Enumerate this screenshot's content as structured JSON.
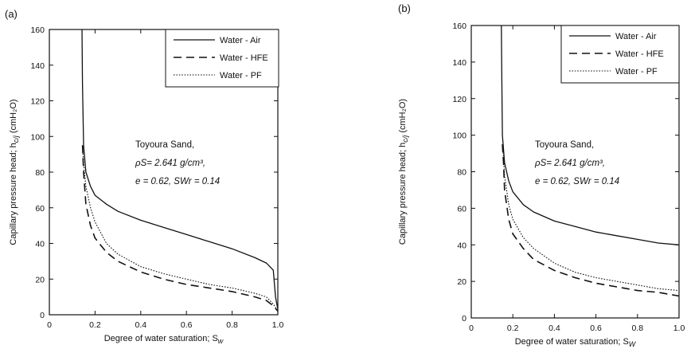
{
  "chart_data": [
    {
      "type": "line",
      "panel_label": "(a)",
      "xlabel": "Degree of water saturation; S",
      "xlabel_sub": "w",
      "ylabel": "Capillary pressure head; h",
      "ylabel_sub": "c/j",
      "ylabel_unit": " (cmH₂O)",
      "xlim": [
        0,
        1.0
      ],
      "ylim": [
        0,
        160
      ],
      "xticks": [
        0,
        0.2,
        0.4,
        0.6,
        0.8,
        1.0
      ],
      "xtick_labels": [
        "0",
        "0.2",
        "0.4",
        "0.6",
        "0.8",
        "1.0"
      ],
      "yticks": [
        0,
        20,
        40,
        60,
        80,
        100,
        120,
        140,
        160
      ],
      "ytick_labels": [
        "0",
        "20",
        "40",
        "60",
        "80",
        "100",
        "120",
        "140",
        "160"
      ],
      "annotation": {
        "line1": "Toyoura Sand,",
        "line2": "ρS= 2.641 g/cm³,",
        "line3": "e = 0.62, SWr = 0.14"
      },
      "legend_position": "top-right",
      "series": [
        {
          "name": "Water - Air",
          "dash": "solid",
          "x": [
            0.143,
            0.145,
            0.15,
            0.16,
            0.18,
            0.2,
            0.25,
            0.3,
            0.4,
            0.5,
            0.6,
            0.7,
            0.8,
            0.9,
            0.95,
            0.98,
            0.99,
            1.0
          ],
          "y": [
            160,
            130,
            95,
            80,
            72,
            67,
            62,
            58,
            53,
            49,
            45,
            41,
            37,
            32,
            29,
            25,
            10,
            3
          ]
        },
        {
          "name": "Water - HFE",
          "dash": "dashed",
          "x": [
            0.145,
            0.15,
            0.16,
            0.18,
            0.2,
            0.25,
            0.3,
            0.4,
            0.5,
            0.6,
            0.7,
            0.8,
            0.9,
            0.95,
            0.98,
            1.0
          ],
          "y": [
            95,
            80,
            62,
            50,
            43,
            35,
            30,
            24,
            20,
            17,
            15,
            13,
            10,
            8,
            5,
            2
          ]
        },
        {
          "name": "Water - PF",
          "dash": "dotted",
          "x": [
            0.145,
            0.15,
            0.16,
            0.18,
            0.2,
            0.25,
            0.3,
            0.4,
            0.5,
            0.6,
            0.7,
            0.8,
            0.9,
            0.95,
            0.98,
            1.0
          ],
          "y": [
            95,
            85,
            72,
            60,
            52,
            40,
            34,
            27,
            23,
            20,
            17,
            15,
            12,
            10,
            6,
            2
          ]
        }
      ]
    },
    {
      "type": "line",
      "panel_label": "(b)",
      "xlabel": "Degree of water saturation; S",
      "xlabel_sub": "W",
      "ylabel": "Capillary pressure head; h",
      "ylabel_sub": "c/j",
      "ylabel_unit": " (cmH₂O)",
      "xlim": [
        0,
        1.0
      ],
      "ylim": [
        0,
        160
      ],
      "xticks": [
        0,
        0.2,
        0.4,
        0.6,
        0.8,
        1.0
      ],
      "xtick_labels": [
        "0",
        "0.2",
        "0.4",
        "0.6",
        "0.8",
        "1.0"
      ],
      "yticks": [
        0,
        20,
        40,
        60,
        80,
        100,
        120,
        140,
        160
      ],
      "ytick_labels": [
        "0",
        "20",
        "40",
        "60",
        "80",
        "100",
        "120",
        "140",
        "160"
      ],
      "annotation": {
        "line1": "Toyoura Sand,",
        "line2": "ρS= 2.641 g/cm³,",
        "line3": "e = 0.62, SWr = 0.14"
      },
      "legend_position": "top-right",
      "series": [
        {
          "name": "Water - Air",
          "dash": "solid",
          "x": [
            0.145,
            0.147,
            0.15,
            0.16,
            0.18,
            0.2,
            0.25,
            0.3,
            0.4,
            0.5,
            0.6,
            0.7,
            0.8,
            0.9,
            1.0
          ],
          "y": [
            160,
            130,
            100,
            85,
            75,
            69,
            62,
            58,
            53,
            50,
            47,
            45,
            43,
            41,
            40
          ]
        },
        {
          "name": "Water - HFE",
          "dash": "dashed",
          "x": [
            0.15,
            0.155,
            0.16,
            0.18,
            0.2,
            0.25,
            0.3,
            0.4,
            0.5,
            0.6,
            0.7,
            0.8,
            0.9,
            1.0
          ],
          "y": [
            95,
            85,
            70,
            54,
            46,
            38,
            32,
            26,
            22,
            19,
            17,
            15,
            14,
            12
          ]
        },
        {
          "name": "Water - PF",
          "dash": "dotted",
          "x": [
            0.15,
            0.155,
            0.16,
            0.18,
            0.2,
            0.25,
            0.3,
            0.4,
            0.5,
            0.6,
            0.7,
            0.8,
            0.9,
            1.0
          ],
          "y": [
            95,
            88,
            78,
            62,
            54,
            44,
            38,
            30,
            25,
            22,
            20,
            18,
            16,
            15
          ]
        }
      ]
    }
  ]
}
